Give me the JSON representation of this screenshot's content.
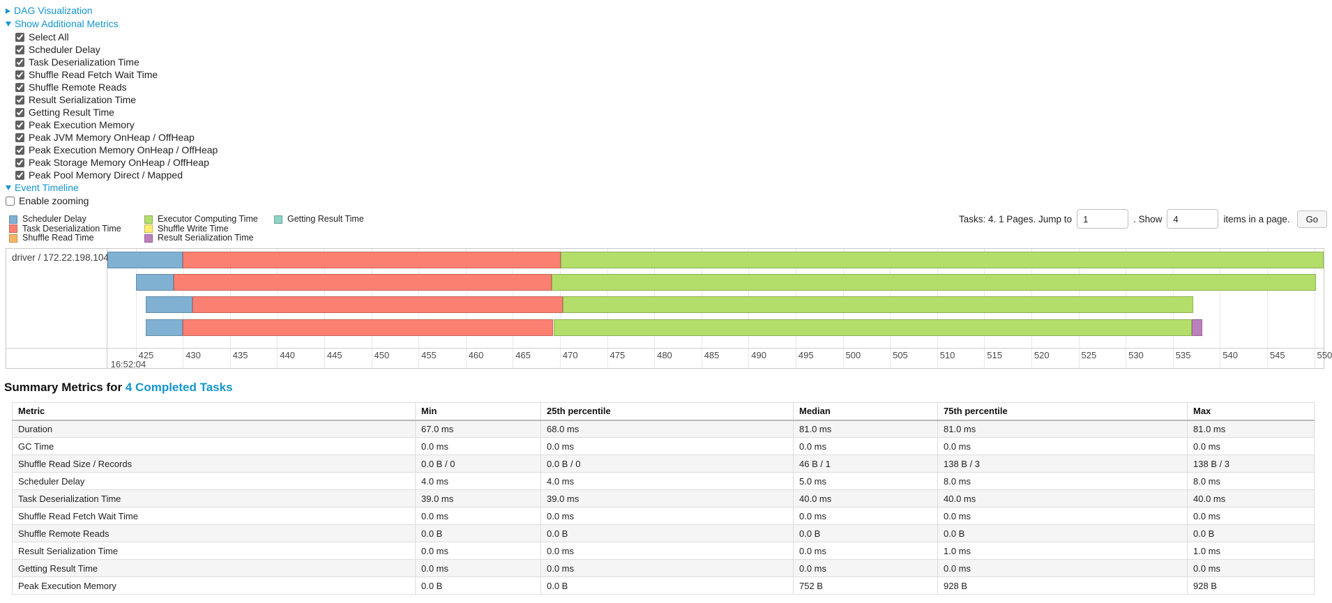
{
  "toggles": {
    "dag": {
      "label": "DAG Visualization",
      "state": "collapsed"
    },
    "metrics": {
      "label": "Show Additional Metrics",
      "state": "expanded"
    },
    "timeline": {
      "label": "Event Timeline",
      "state": "expanded"
    }
  },
  "metric_checkboxes": [
    {
      "label": "Select All",
      "checked": true
    },
    {
      "label": "Scheduler Delay",
      "checked": true
    },
    {
      "label": "Task Deserialization Time",
      "checked": true
    },
    {
      "label": "Shuffle Read Fetch Wait Time",
      "checked": true
    },
    {
      "label": "Shuffle Remote Reads",
      "checked": true
    },
    {
      "label": "Result Serialization Time",
      "checked": true
    },
    {
      "label": "Getting Result Time",
      "checked": true
    },
    {
      "label": "Peak Execution Memory",
      "checked": true
    },
    {
      "label": "Peak JVM Memory OnHeap / OffHeap",
      "checked": true
    },
    {
      "label": "Peak Execution Memory OnHeap / OffHeap",
      "checked": true
    },
    {
      "label": "Peak Storage Memory OnHeap / OffHeap",
      "checked": true
    },
    {
      "label": "Peak Pool Memory Direct / Mapped",
      "checked": true
    }
  ],
  "enable_zooming": {
    "label": "Enable zooming",
    "checked": false
  },
  "legend": {
    "columns": [
      [
        {
          "label": "Scheduler Delay",
          "color": "#80B1D3"
        },
        {
          "label": "Task Deserialization Time",
          "color": "#FB8072"
        },
        {
          "label": "Shuffle Read Time",
          "color": "#FDB462"
        }
      ],
      [
        {
          "label": "Executor Computing Time",
          "color": "#B3DE69"
        },
        {
          "label": "Shuffle Write Time",
          "color": "#FFED6F"
        },
        {
          "label": "Result Serialization Time",
          "color": "#BC80BD"
        }
      ],
      [
        {
          "label": "Getting Result Time",
          "color": "#8DD3C7"
        }
      ]
    ]
  },
  "pagination": {
    "info": "Tasks: 4. 1 Pages. Jump to",
    "jump_value": "1",
    "show_label": ". Show",
    "show_value": "4",
    "suffix": "items in a page.",
    "go_label": "Go"
  },
  "chart_data": {
    "type": "timeline",
    "group_label": "driver / 172.22.198.104",
    "axis": {
      "major_label": "16:52:04",
      "unit": "ms within second 16:52:04",
      "tick_start": 425,
      "tick_end": 550,
      "tick_interval": 5,
      "domain": [
        422.0,
        551.0
      ]
    },
    "tasks": [
      {
        "segments": [
          {
            "metric": "scheduler-delay",
            "color": "#80B1D3",
            "start": 422.0,
            "end": 430.0
          },
          {
            "metric": "task-deserialization-time",
            "color": "#FB8072",
            "start": 430.0,
            "end": 470.1
          },
          {
            "metric": "executor-computing-time",
            "color": "#B3DE69",
            "start": 470.1,
            "end": 551.0
          }
        ]
      },
      {
        "segments": [
          {
            "metric": "scheduler-delay",
            "color": "#80B1D3",
            "start": 425.0,
            "end": 429.0
          },
          {
            "metric": "task-deserialization-time",
            "color": "#FB8072",
            "start": 429.0,
            "end": 469.1
          },
          {
            "metric": "executor-computing-time",
            "color": "#B3DE69",
            "start": 469.1,
            "end": 550.2
          }
        ]
      },
      {
        "segments": [
          {
            "metric": "scheduler-delay",
            "color": "#80B1D3",
            "start": 426.1,
            "end": 431.0
          },
          {
            "metric": "task-deserialization-time",
            "color": "#FB8072",
            "start": 431.0,
            "end": 470.3
          },
          {
            "metric": "executor-computing-time",
            "color": "#B3DE69",
            "start": 470.3,
            "end": 537.2
          }
        ]
      },
      {
        "segments": [
          {
            "metric": "scheduler-delay",
            "color": "#80B1D3",
            "start": 426.1,
            "end": 430.0
          },
          {
            "metric": "task-deserialization-time",
            "color": "#FB8072",
            "start": 430.0,
            "end": 469.3
          },
          {
            "metric": "executor-computing-time",
            "color": "#B3DE69",
            "start": 469.3,
            "end": 537.0
          },
          {
            "metric": "result-serialization-time",
            "color": "#BC80BD",
            "start": 537.0,
            "end": 538.1
          }
        ]
      }
    ]
  },
  "summary": {
    "title_prefix": "Summary Metrics for",
    "title_link": "4 Completed Tasks",
    "table": {
      "headers": [
        "Metric",
        "Min",
        "25th percentile",
        "Median",
        "75th percentile",
        "Max"
      ],
      "rows": [
        [
          "Duration",
          "67.0 ms",
          "68.0 ms",
          "81.0 ms",
          "81.0 ms",
          "81.0 ms"
        ],
        [
          "GC Time",
          "0.0 ms",
          "0.0 ms",
          "0.0 ms",
          "0.0 ms",
          "0.0 ms"
        ],
        [
          "Shuffle Read Size / Records",
          "0.0 B / 0",
          "0.0 B / 0",
          "46 B / 1",
          "138 B / 3",
          "138 B / 3"
        ],
        [
          "Scheduler Delay",
          "4.0 ms",
          "4.0 ms",
          "5.0 ms",
          "8.0 ms",
          "8.0 ms"
        ],
        [
          "Task Deserialization Time",
          "39.0 ms",
          "39.0 ms",
          "40.0 ms",
          "40.0 ms",
          "40.0 ms"
        ],
        [
          "Shuffle Read Fetch Wait Time",
          "0.0 ms",
          "0.0 ms",
          "0.0 ms",
          "0.0 ms",
          "0.0 ms"
        ],
        [
          "Shuffle Remote Reads",
          "0.0 B",
          "0.0 B",
          "0.0 B",
          "0.0 B",
          "0.0 B"
        ],
        [
          "Result Serialization Time",
          "0.0 ms",
          "0.0 ms",
          "0.0 ms",
          "1.0 ms",
          "1.0 ms"
        ],
        [
          "Getting Result Time",
          "0.0 ms",
          "0.0 ms",
          "0.0 ms",
          "0.0 ms",
          "0.0 ms"
        ],
        [
          "Peak Execution Memory",
          "0.0 B",
          "0.0 B",
          "752 B",
          "928 B",
          "928 B"
        ]
      ]
    }
  },
  "colors": {
    "link": "#1395cd",
    "scheduler_delay": "#80B1D3",
    "task_deserialization_time": "#FB8072",
    "shuffle_read_time": "#FDB462",
    "executor_computing_time": "#B3DE69",
    "shuffle_write_time": "#FFED6F",
    "result_serialization_time": "#BC80BD",
    "getting_result_time": "#8DD3C7"
  }
}
